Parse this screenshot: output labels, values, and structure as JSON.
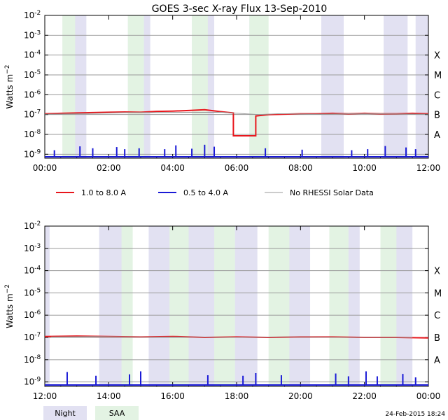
{
  "title": "GOES 3-sec X-ray Flux    13-Sep-2010",
  "ylabel_base": "Watts m",
  "ylabel_exp": "−2",
  "y_ticks": [
    {
      "exp": "-2",
      "log": -2
    },
    {
      "exp": "-3",
      "log": -3
    },
    {
      "exp": "-4",
      "log": -4
    },
    {
      "exp": "-5",
      "log": -5
    },
    {
      "exp": "-6",
      "log": -6
    },
    {
      "exp": "-7",
      "log": -7
    },
    {
      "exp": "-8",
      "log": -8
    },
    {
      "exp": "-9",
      "log": -9
    }
  ],
  "flare_classes": [
    {
      "label": "X",
      "log": -4
    },
    {
      "label": "M",
      "log": -5
    },
    {
      "label": "C",
      "log": -6
    },
    {
      "label": "B",
      "log": -7
    },
    {
      "label": "A",
      "log": -8
    }
  ],
  "legend": [
    {
      "label": "1.0 to 8.0 A",
      "color": "#e8161c"
    },
    {
      "label": "0.5 to 4.0 A",
      "color": "#1a1ad6"
    },
    {
      "label": "No RHESSI Solar Data",
      "color": "#9a9a9a"
    }
  ],
  "shade_legend": [
    {
      "label": "Night",
      "color": "#e2e1f2"
    },
    {
      "label": "SAA",
      "color": "#e3f3e3"
    }
  ],
  "timestamp": "24-Feb-2015 18:24",
  "colors": {
    "night": "#e2e1f2",
    "saa": "#e3f3e3",
    "grid": "#9a9a9a",
    "red": "#e8161c",
    "blue": "#1a1ad6",
    "gray": "#9a9a9a"
  },
  "chart_data": [
    {
      "type": "line",
      "xlim": [
        0,
        12
      ],
      "ylim_log10": [
        -9.2,
        -2
      ],
      "y_scale": "log",
      "x_tick_labels": [
        "00:00",
        "02:00",
        "04:00",
        "06:00",
        "08:00",
        "10:00",
        "12:00"
      ],
      "x_ticks_hours": [
        0,
        2,
        4,
        6,
        8,
        10,
        12
      ],
      "night": [
        [
          0.6,
          1.3
        ],
        [
          2.6,
          3.3
        ],
        [
          4.6,
          5.3
        ],
        [
          6.4,
          6.8
        ],
        [
          8.65,
          9.35
        ],
        [
          10.6,
          11.35
        ],
        [
          11.6,
          12.0
        ]
      ],
      "saa": [
        [
          0.55,
          0.95
        ],
        [
          2.6,
          3.1
        ],
        [
          4.6,
          5.1
        ],
        [
          6.4,
          7.0
        ]
      ],
      "series": [
        {
          "name": "1.0 to 8.0 A",
          "color": "#e8161c",
          "points": [
            [
              0,
              1.1e-07
            ],
            [
              0.5,
              1.15e-07
            ],
            [
              1.0,
              1.2e-07
            ],
            [
              1.5,
              1.25e-07
            ],
            [
              2.0,
              1.3e-07
            ],
            [
              2.5,
              1.35e-07
            ],
            [
              3.0,
              1.3e-07
            ],
            [
              3.5,
              1.45e-07
            ],
            [
              4.0,
              1.5e-07
            ],
            [
              4.5,
              1.6e-07
            ],
            [
              5.0,
              1.75e-07
            ],
            [
              5.5,
              1.4e-07
            ],
            [
              5.9,
              1.2e-07
            ],
            [
              5.9,
              8.5e-09
            ],
            [
              6.6,
              8.5e-09
            ],
            [
              6.6,
              8.5e-08
            ],
            [
              7.0,
              1e-07
            ],
            [
              7.5,
              1.05e-07
            ],
            [
              8.0,
              1.1e-07
            ],
            [
              8.5,
              1.1e-07
            ],
            [
              9.0,
              1.15e-07
            ],
            [
              9.5,
              1.1e-07
            ],
            [
              10.0,
              1.15e-07
            ],
            [
              10.5,
              1.1e-07
            ],
            [
              11.0,
              1.1e-07
            ],
            [
              11.5,
              1.15e-07
            ],
            [
              12.0,
              1.1e-07
            ]
          ]
        },
        {
          "name": "No RHESSI Solar Data",
          "color": "#9a9a9a",
          "points": [
            [
              0,
              1.05e-07
            ],
            [
              1.0,
              1.1e-07
            ],
            [
              2.5,
              1.25e-07
            ],
            [
              5.5,
              1.3e-07
            ],
            [
              6.7,
              1e-07
            ],
            [
              7.3,
              1.1e-07
            ],
            [
              8.5,
              1.05e-07
            ],
            [
              9.5,
              1.1e-07
            ],
            [
              10.5,
              1.1e-07
            ],
            [
              12.0,
              1.05e-07
            ]
          ]
        },
        {
          "name": "0.5 to 4.0 A",
          "color": "#1a1ad6",
          "type": "spikes",
          "points": [
            [
              0.3,
              1.6e-09
            ],
            [
              1.1,
              2.5e-09
            ],
            [
              1.5,
              2e-09
            ],
            [
              2.25,
              2.3e-09
            ],
            [
              2.5,
              1.8e-09
            ],
            [
              2.95,
              2e-09
            ],
            [
              3.75,
              1.8e-09
            ],
            [
              4.1,
              2.8e-09
            ],
            [
              4.6,
              1.9e-09
            ],
            [
              5.0,
              3e-09
            ],
            [
              5.3,
              2.4e-09
            ],
            [
              6.9,
              2e-09
            ],
            [
              8.05,
              1.7e-09
            ],
            [
              9.6,
              1.6e-09
            ],
            [
              10.1,
              1.8e-09
            ],
            [
              10.65,
              2.6e-09
            ],
            [
              11.3,
              2.2e-09
            ],
            [
              11.6,
              1.8e-09
            ]
          ]
        }
      ]
    },
    {
      "type": "line",
      "xlim": [
        12,
        24
      ],
      "ylim_log10": [
        -9.2,
        -2
      ],
      "y_scale": "log",
      "x_tick_labels": [
        "12:00",
        "14:00",
        "16:00",
        "18:00",
        "20:00",
        "22:00",
        "00:00"
      ],
      "x_ticks_hours": [
        12,
        14,
        16,
        18,
        20,
        22,
        24
      ],
      "night": [
        [
          12.0,
          12.15
        ],
        [
          13.7,
          14.5
        ],
        [
          15.25,
          16.05
        ],
        [
          16.5,
          17.4
        ],
        [
          17.9,
          18.65
        ],
        [
          19.55,
          20.3
        ],
        [
          21.3,
          21.85
        ],
        [
          22.7,
          23.5
        ]
      ],
      "saa": [
        [
          14.4,
          14.75
        ],
        [
          15.9,
          16.5
        ],
        [
          17.3,
          17.95
        ],
        [
          19.0,
          19.65
        ],
        [
          20.9,
          21.5
        ],
        [
          22.5,
          23.0
        ]
      ],
      "series": [
        {
          "name": "1.0 to 8.0 A",
          "color": "#e8161c",
          "points": [
            [
              12,
              1.1e-07
            ],
            [
              13,
              1.15e-07
            ],
            [
              14,
              1.1e-07
            ],
            [
              15,
              1.05e-07
            ],
            [
              16,
              1.1e-07
            ],
            [
              17,
              1e-07
            ],
            [
              18,
              1.05e-07
            ],
            [
              19,
              1e-07
            ],
            [
              20,
              1.05e-07
            ],
            [
              21,
              1.05e-07
            ],
            [
              22,
              1e-07
            ],
            [
              23,
              1e-07
            ],
            [
              24,
              9.5e-08
            ]
          ]
        },
        {
          "name": "No RHESSI Solar Data",
          "color": "#9a9a9a",
          "points": [
            [
              12.2,
              1.05e-07
            ],
            [
              13.7,
              1.1e-07
            ],
            [
              15.0,
              1.05e-07
            ],
            [
              16.5,
              1.05e-07
            ],
            [
              18.0,
              1e-07
            ],
            [
              19.5,
              1.05e-07
            ],
            [
              20.3,
              1.05e-07
            ],
            [
              21.9,
              1e-07
            ],
            [
              23.5,
              1e-07
            ]
          ]
        },
        {
          "name": "0.5 to 4.0 A",
          "color": "#1a1ad6",
          "type": "spikes",
          "points": [
            [
              12.7,
              2.8e-09
            ],
            [
              13.6,
              1.9e-09
            ],
            [
              14.65,
              2.2e-09
            ],
            [
              15.0,
              3e-09
            ],
            [
              17.1,
              2e-09
            ],
            [
              18.2,
              1.9e-09
            ],
            [
              18.6,
              2.5e-09
            ],
            [
              19.4,
              2e-09
            ],
            [
              21.1,
              2.4e-09
            ],
            [
              21.5,
              1.8e-09
            ],
            [
              22.05,
              3e-09
            ],
            [
              22.4,
              1.8e-09
            ],
            [
              23.2,
              2.3e-09
            ],
            [
              23.6,
              1.6e-09
            ]
          ]
        }
      ]
    }
  ]
}
